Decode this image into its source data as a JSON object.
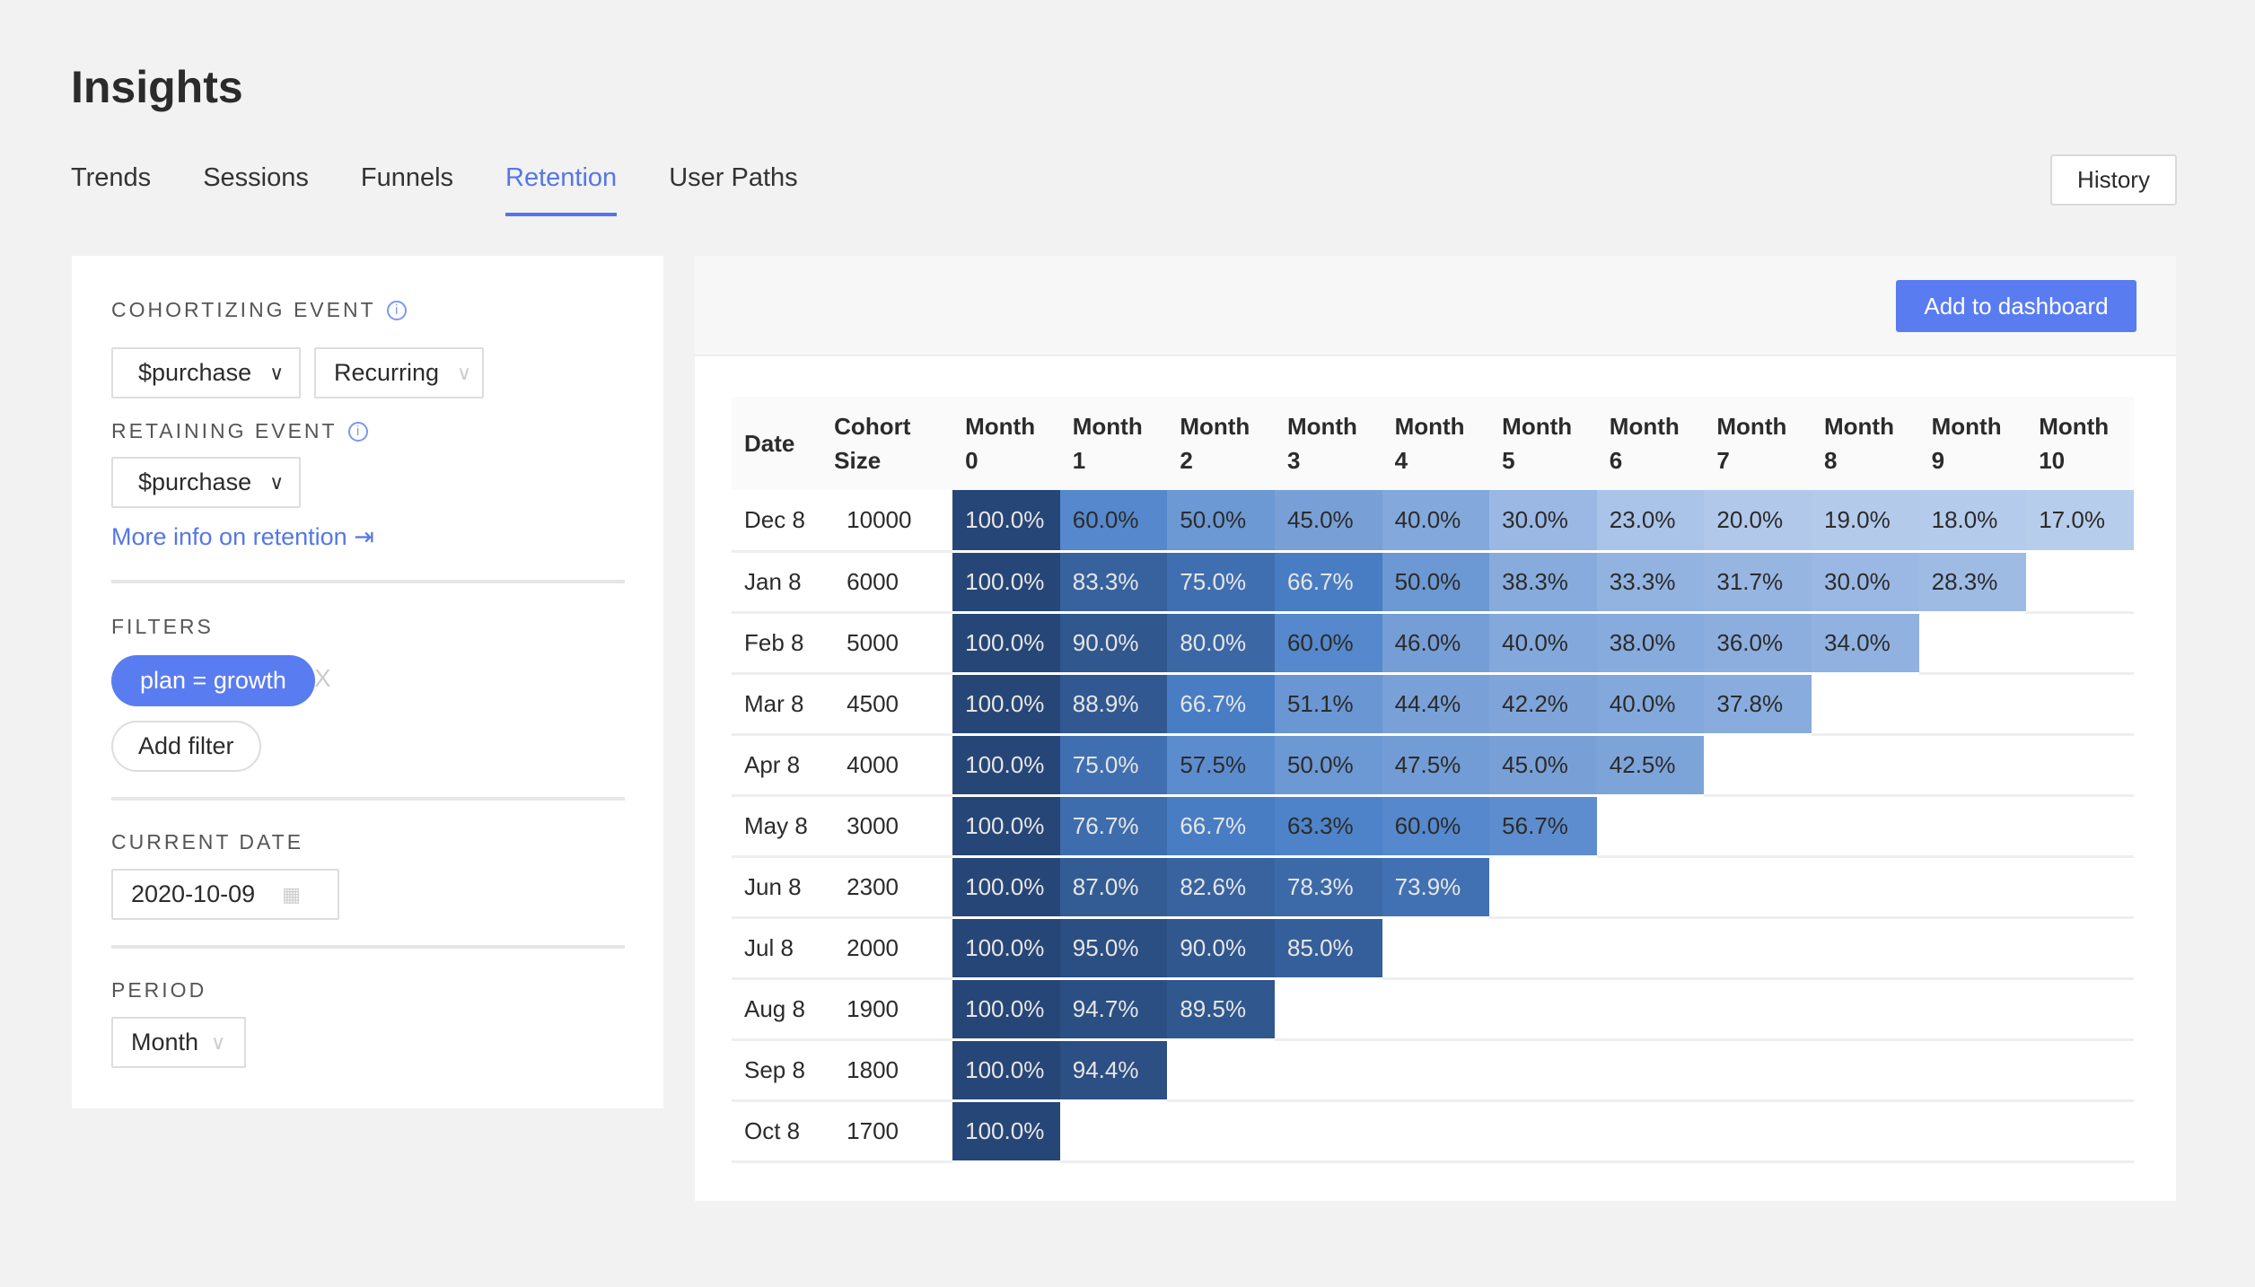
{
  "header": {
    "title": "Insights",
    "tabs": [
      "Trends",
      "Sessions",
      "Funnels",
      "Retention",
      "User Paths"
    ],
    "active_tab": "Retention",
    "history_label": "History"
  },
  "sidebar": {
    "cohortizing_label": "COHORTIZING EVENT",
    "cohortizing_event": "$purchase",
    "cohortizing_type": "Recurring",
    "retaining_label": "RETAINING EVENT",
    "retaining_event": "$purchase",
    "more_info": "More info on retention",
    "filters_label": "FILTERS",
    "filter_pill": "plan = growth",
    "filter_remove": "X",
    "add_filter": "Add filter",
    "current_date_label": "CURRENT DATE",
    "current_date": "2020-10-09",
    "period_label": "PERIOD",
    "period": "Month"
  },
  "main": {
    "add_to_dashboard": "Add to dashboard"
  },
  "colors": {
    "accent": "#5a7cf1",
    "cell_high": "#264677",
    "cell_mid": "#4a80c8",
    "cell_low": "#bcd0ee"
  },
  "chart_data": {
    "type": "heatmap",
    "columns": [
      "Date",
      "Cohort Size",
      "Month 0",
      "Month 1",
      "Month 2",
      "Month 3",
      "Month 4",
      "Month 5",
      "Month 6",
      "Month 7",
      "Month 8",
      "Month 9",
      "Month 10"
    ],
    "rows": [
      {
        "date": "Dec 8",
        "size": "10000",
        "values": [
          100.0,
          60.0,
          50.0,
          45.0,
          40.0,
          30.0,
          23.0,
          20.0,
          19.0,
          18.0,
          17.0
        ]
      },
      {
        "date": "Jan 8",
        "size": "6000",
        "values": [
          100.0,
          83.3,
          75.0,
          66.7,
          50.0,
          38.3,
          33.3,
          31.7,
          30.0,
          28.3
        ]
      },
      {
        "date": "Feb 8",
        "size": "5000",
        "values": [
          100.0,
          90.0,
          80.0,
          60.0,
          46.0,
          40.0,
          38.0,
          36.0,
          34.0
        ]
      },
      {
        "date": "Mar 8",
        "size": "4500",
        "values": [
          100.0,
          88.9,
          66.7,
          51.1,
          44.4,
          42.2,
          40.0,
          37.8
        ]
      },
      {
        "date": "Apr 8",
        "size": "4000",
        "values": [
          100.0,
          75.0,
          57.5,
          50.0,
          47.5,
          45.0,
          42.5
        ]
      },
      {
        "date": "May 8",
        "size": "3000",
        "values": [
          100.0,
          76.7,
          66.7,
          63.3,
          60.0,
          56.7
        ]
      },
      {
        "date": "Jun 8",
        "size": "2300",
        "values": [
          100.0,
          87.0,
          82.6,
          78.3,
          73.9
        ]
      },
      {
        "date": "Jul 8",
        "size": "2000",
        "values": [
          100.0,
          95.0,
          90.0,
          85.0
        ]
      },
      {
        "date": "Aug 8",
        "size": "1900",
        "values": [
          100.0,
          94.7,
          89.5
        ]
      },
      {
        "date": "Sep 8",
        "size": "1800",
        "values": [
          100.0,
          94.4
        ]
      },
      {
        "date": "Oct 8",
        "size": "1700",
        "values": [
          100.0
        ]
      }
    ]
  }
}
